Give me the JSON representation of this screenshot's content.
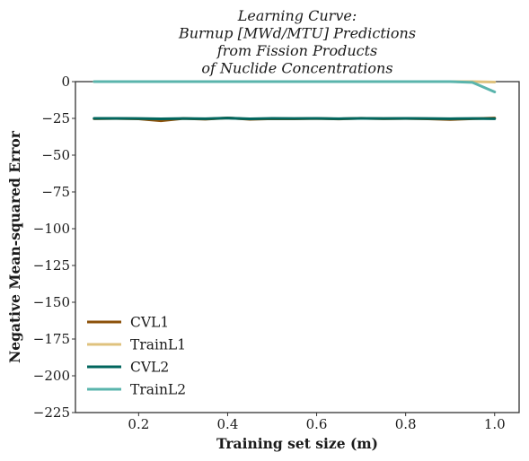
{
  "chart_data": {
    "type": "line",
    "title_lines": [
      "Learning Curve:",
      "Burnup [MWd/MTU] Predictions",
      "from Fission Products",
      "of Nuclide Concentrations"
    ],
    "xlabel": "Training set size (m)",
    "ylabel": "Negative Mean-squared Error",
    "xlim": [
      0.058,
      1.055
    ],
    "ylim": [
      -225,
      0
    ],
    "xticks": [
      0.2,
      0.4,
      0.6,
      0.8,
      1.0
    ],
    "xtick_labels": [
      "0.2",
      "0.4",
      "0.6",
      "0.8",
      "1.0"
    ],
    "yticks": [
      0,
      -25,
      -50,
      -75,
      -100,
      -125,
      -150,
      -175,
      -200,
      -225
    ],
    "ytick_labels": [
      "0",
      "−25",
      "−50",
      "−75",
      "−100",
      "−125",
      "−150",
      "−175",
      "−200",
      "−225"
    ],
    "grid": false,
    "legend_position": "lower-left",
    "x": [
      0.1,
      0.15,
      0.2,
      0.25,
      0.3,
      0.35,
      0.4,
      0.45,
      0.5,
      0.55,
      0.6,
      0.65,
      0.7,
      0.75,
      0.8,
      0.85,
      0.9,
      0.95,
      1.0
    ],
    "series": [
      {
        "name": "CVL1",
        "color": "#8c510a",
        "values": [
          -25.2,
          -25.1,
          -25.3,
          -26.6,
          -25.1,
          -25.5,
          -24.7,
          -25.6,
          -25.2,
          -25.3,
          -25.1,
          -25.4,
          -24.9,
          -25.2,
          -25.1,
          -25.3,
          -25.8,
          -25.2,
          -24.8
        ]
      },
      {
        "name": "TrainL1",
        "color": "#dfc27d",
        "values": [
          0,
          0,
          0,
          0,
          0,
          0,
          0,
          0,
          0,
          0,
          0,
          0,
          0,
          0,
          0,
          0,
          0,
          0,
          -0.3
        ]
      },
      {
        "name": "CVL2",
        "color": "#01665e",
        "values": [
          -25.0,
          -25.0,
          -25.1,
          -25.3,
          -25.1,
          -25.2,
          -24.8,
          -25.3,
          -25.0,
          -25.1,
          -25.0,
          -25.2,
          -25.0,
          -25.1,
          -25.0,
          -25.1,
          -25.2,
          -25.1,
          -25.2
        ]
      },
      {
        "name": "TrainL2",
        "color": "#5ab4ac",
        "values": [
          0,
          0,
          0,
          0,
          0,
          0,
          0,
          0,
          0,
          0,
          0,
          0,
          0,
          0,
          0,
          0,
          0,
          -0.5,
          -7.0
        ]
      }
    ]
  }
}
